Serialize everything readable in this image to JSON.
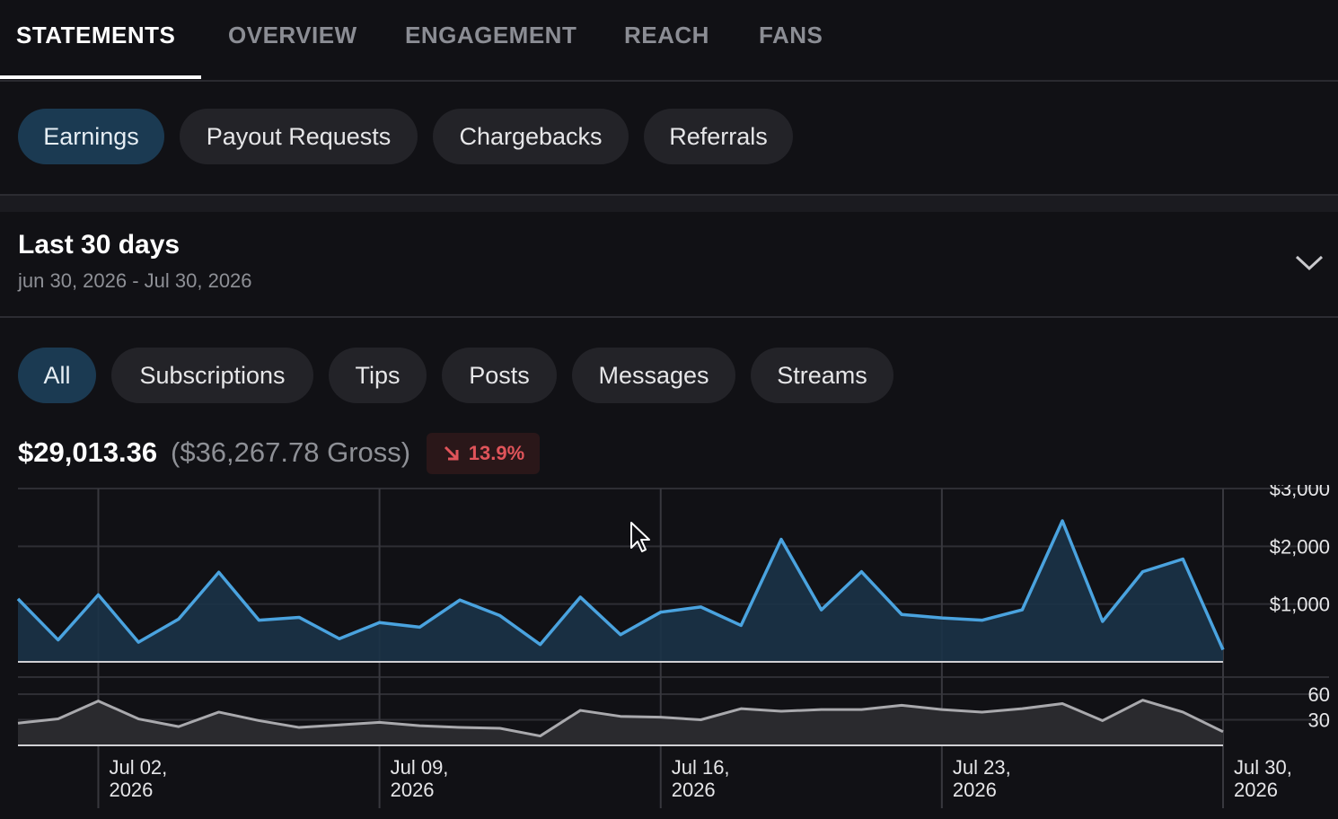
{
  "tabs": [
    {
      "label": "STATEMENTS",
      "active": true
    },
    {
      "label": "OVERVIEW",
      "active": false
    },
    {
      "label": "ENGAGEMENT",
      "active": false
    },
    {
      "label": "REACH",
      "active": false
    },
    {
      "label": "FANS",
      "active": false
    }
  ],
  "subtabs": [
    {
      "label": "Earnings",
      "active": true
    },
    {
      "label": "Payout Requests",
      "active": false
    },
    {
      "label": "Chargebacks",
      "active": false
    },
    {
      "label": "Referrals",
      "active": false
    }
  ],
  "period": {
    "title": "Last 30 days",
    "range": "jun 30, 2026 - Jul 30, 2026",
    "chevron_icon": "chevron-down-icon"
  },
  "filters": [
    {
      "label": "All",
      "active": true
    },
    {
      "label": "Subscriptions",
      "active": false
    },
    {
      "label": "Tips",
      "active": false
    },
    {
      "label": "Posts",
      "active": false
    },
    {
      "label": "Messages",
      "active": false
    },
    {
      "label": "Streams",
      "active": false
    }
  ],
  "summary": {
    "net": "$29,013.36",
    "gross": "($36,267.78 Gross)",
    "change": "13.9%",
    "change_icon": "arrow-down-right-icon",
    "change_color": "#e0545a"
  },
  "colors": {
    "accent": "#4aa3df",
    "accent_fill": "#1b3347",
    "secondary_line": "#a9a9ad",
    "active_pill": "#1b3a52"
  },
  "chart_data": {
    "type": "area",
    "x": [
      "Jun 30",
      "Jul 01",
      "Jul 02",
      "Jul 03",
      "Jul 04",
      "Jul 05",
      "Jul 06",
      "Jul 07",
      "Jul 08",
      "Jul 09",
      "Jul 10",
      "Jul 11",
      "Jul 12",
      "Jul 13",
      "Jul 14",
      "Jul 15",
      "Jul 16",
      "Jul 17",
      "Jul 18",
      "Jul 19",
      "Jul 20",
      "Jul 21",
      "Jul 22",
      "Jul 23",
      "Jul 24",
      "Jul 25",
      "Jul 26",
      "Jul 27",
      "Jul 28",
      "Jul 29",
      "Jul 30"
    ],
    "x_ticks": [
      {
        "line1": "Jul 02,",
        "line2": "2026"
      },
      {
        "line1": "Jul 09,",
        "line2": "2026"
      },
      {
        "line1": "Jul 16,",
        "line2": "2026"
      },
      {
        "line1": "Jul 23,",
        "line2": "2026"
      },
      {
        "line1": "Jul 30,",
        "line2": "2026"
      }
    ],
    "x_tick_index": [
      2,
      9,
      16,
      23,
      30
    ],
    "top": {
      "values": [
        1090,
        380,
        1160,
        340,
        740,
        1550,
        720,
        770,
        400,
        680,
        600,
        1070,
        800,
        300,
        1120,
        470,
        860,
        950,
        630,
        2120,
        900,
        1560,
        820,
        760,
        720,
        900,
        2440,
        700,
        1560,
        1780,
        210
      ],
      "ylim": [
        0,
        3000
      ],
      "y_ticks": [
        "$3,000",
        "$2,000",
        "$1,000"
      ],
      "y_tick_values": [
        3000,
        2000,
        1000
      ]
    },
    "bottom": {
      "values": [
        26,
        31,
        52,
        31,
        22,
        39,
        29,
        21,
        24,
        27,
        23,
        21,
        20,
        11,
        41,
        34,
        33,
        30,
        43,
        40,
        42,
        42,
        47,
        42,
        39,
        43,
        49,
        29,
        53,
        39,
        16
      ],
      "ylim": [
        0,
        80
      ],
      "y_ticks": [
        "60",
        "30"
      ],
      "y_tick_values": [
        60,
        30
      ]
    },
    "grid": true
  }
}
